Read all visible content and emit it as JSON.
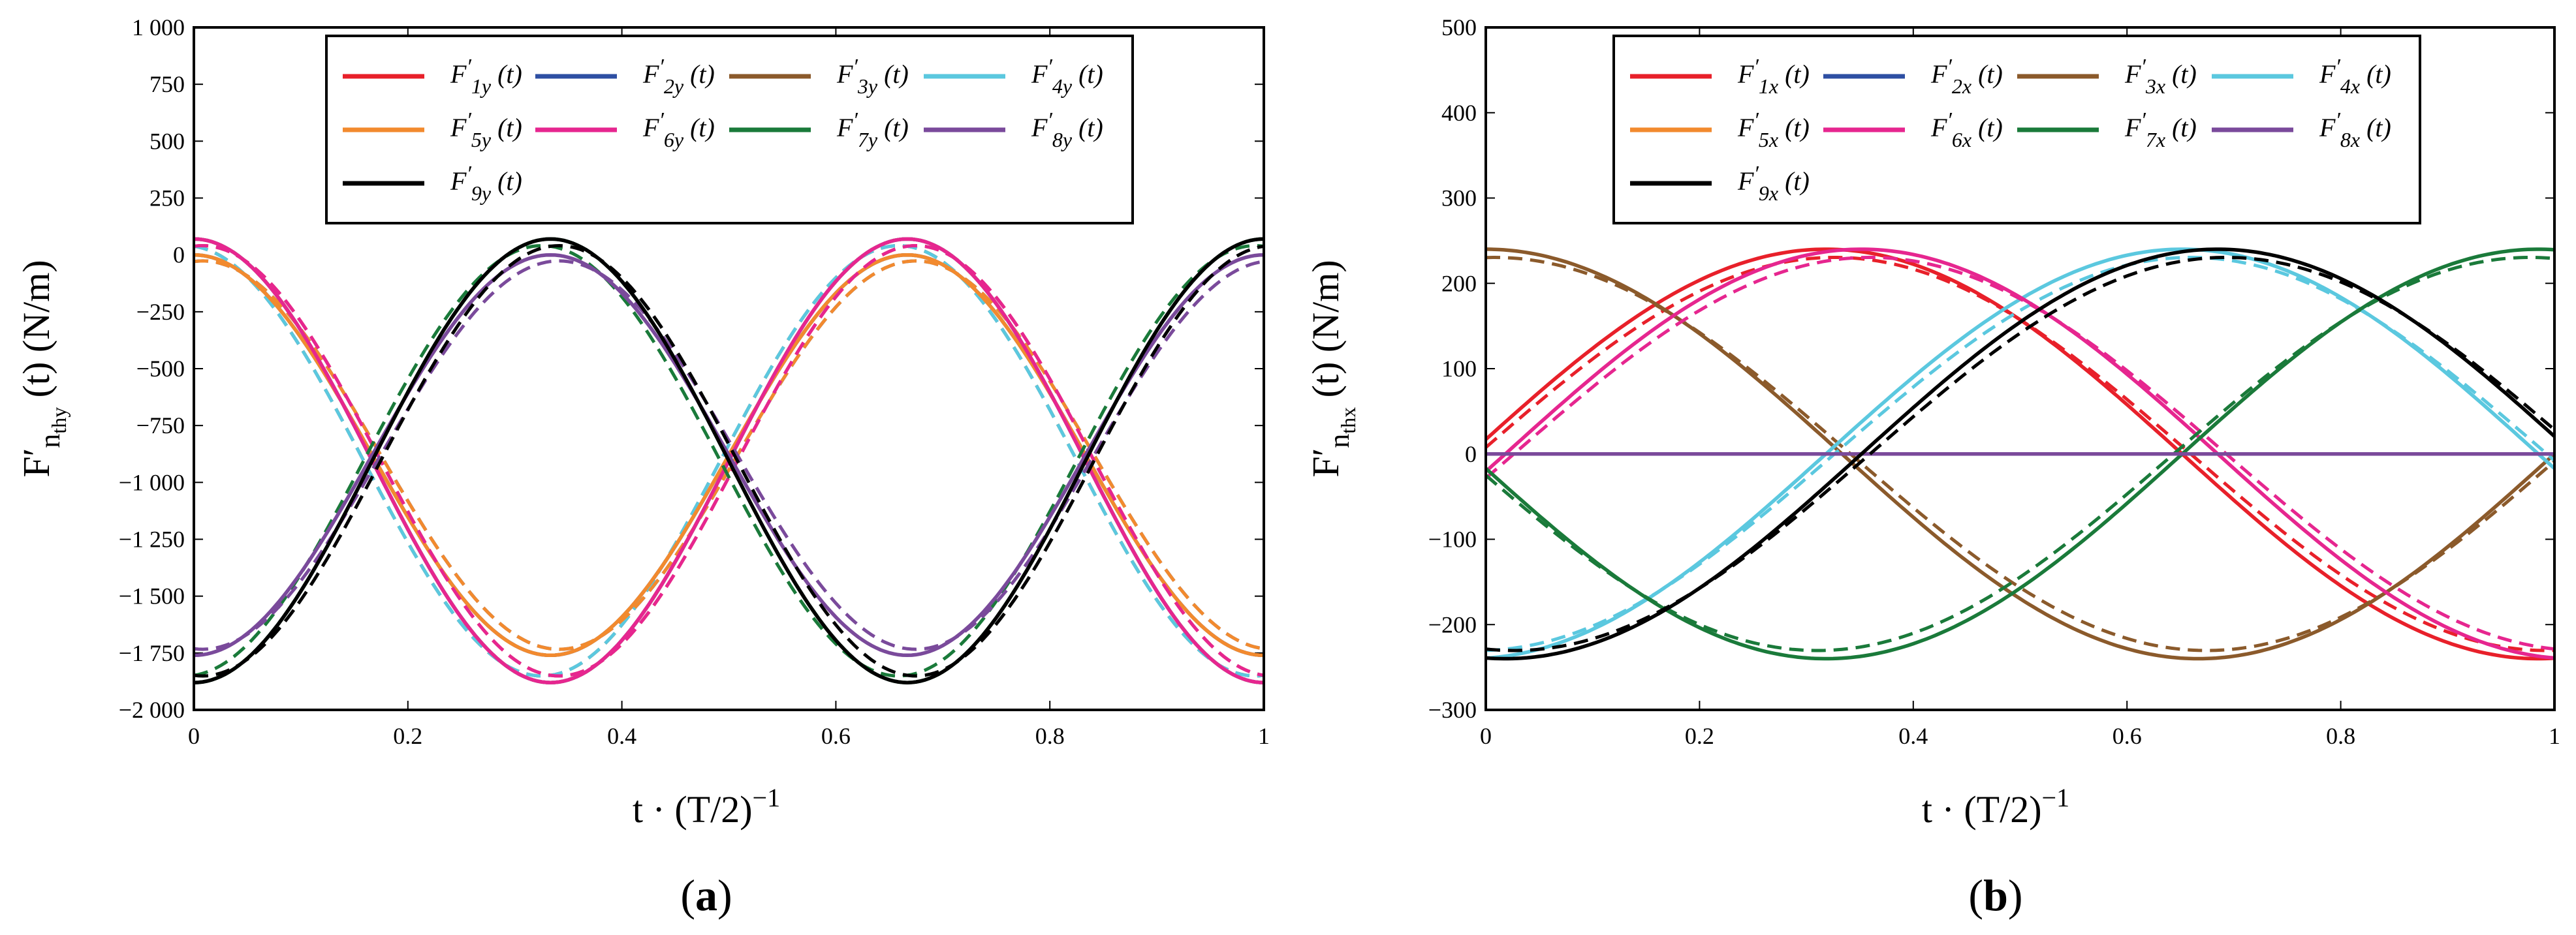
{
  "chart_data": [
    {
      "type": "line",
      "panel_label": "(a)",
      "panel_letter": "a",
      "ylabel": "F′nthy (t) (N/m)",
      "ylabel_main": "F′",
      "ylabel_sub": "n",
      "ylabel_subsub": "thy",
      "ylabel_tail": " (t) (N/m)",
      "xlabel": "t · (T/2)−1",
      "xlabel_main": "t · (T/2)",
      "xlabel_sup": "−1",
      "xlim": [
        0,
        1
      ],
      "ylim": [
        -2000,
        1000
      ],
      "x_ticks": [
        0,
        0.2,
        0.4,
        0.6,
        0.8,
        1
      ],
      "x_tick_labels": [
        "0",
        "0.2",
        "0.4",
        "0.6",
        "0.8",
        "1"
      ],
      "y_ticks": [
        1000,
        750,
        500,
        250,
        0,
        -250,
        -500,
        -750,
        -1000,
        -1250,
        -1500,
        -1750,
        -2000
      ],
      "y_tick_labels": [
        "1 000",
        "750",
        "500",
        "250",
        "0",
        "−250",
        "−500",
        "−750",
        "−1 000",
        "−1 250",
        "−1 500",
        "−1 750",
        "−2 000"
      ],
      "legend_position": "top",
      "style_note": "solid = model, dashed = reference",
      "series": [
        {
          "name": "F′1y (t)",
          "base": "F",
          "sub": "1y",
          "color": "#e8202a",
          "offset": -905,
          "amplitude": 975,
          "phase": 0.6667,
          "dashed_scale": 0.97,
          "dashed_shift": 0.008
        },
        {
          "name": "F′2y (t)",
          "base": "F",
          "sub": "2y",
          "color": "#2e4fa3",
          "offset": -880,
          "amplitude": 880,
          "phase": 0.6667,
          "dashed_scale": 0.97,
          "dashed_shift": 0.008
        },
        {
          "name": "F′3y (t)",
          "base": "F",
          "sub": "3y",
          "color": "#8b5a2b",
          "offset": -905,
          "amplitude": 975,
          "phase": 0.6667,
          "dashed_scale": 0.97,
          "dashed_shift": -0.008
        },
        {
          "name": "F′4y (t)",
          "base": "F",
          "sub": "4y",
          "color": "#5bc8df",
          "offset": -905,
          "amplitude": 975,
          "phase": 0.0,
          "dashed_scale": 0.97,
          "dashed_shift": -0.008
        },
        {
          "name": "F′5y (t)",
          "base": "F",
          "sub": "5y",
          "color": "#f28a2e",
          "offset": -880,
          "amplitude": 880,
          "phase": 0.0,
          "dashed_scale": 0.97,
          "dashed_shift": 0.008
        },
        {
          "name": "F′6y (t)",
          "base": "F",
          "sub": "6y",
          "color": "#e6268f",
          "offset": -905,
          "amplitude": 975,
          "phase": 0.0,
          "dashed_scale": 0.97,
          "dashed_shift": 0.008
        },
        {
          "name": "F′7y (t)",
          "base": "F",
          "sub": "7y",
          "color": "#1a7a3a",
          "offset": -905,
          "amplitude": 975,
          "phase": 0.3333,
          "dashed_scale": 0.97,
          "dashed_shift": -0.008
        },
        {
          "name": "F′8y (t)",
          "base": "F",
          "sub": "8y",
          "color": "#7a4a9b",
          "offset": -880,
          "amplitude": 880,
          "phase": 0.3333,
          "dashed_scale": 0.97,
          "dashed_shift": 0.008
        },
        {
          "name": "F′9y (t)",
          "base": "F",
          "sub": "9y",
          "color": "#000000",
          "offset": -905,
          "amplitude": 975,
          "phase": 0.3333,
          "dashed_scale": 0.97,
          "dashed_shift": 0.008
        }
      ]
    },
    {
      "type": "line",
      "panel_label": "(b)",
      "panel_letter": "b",
      "ylabel": "F′nthx (t) (N/m)",
      "ylabel_main": "F′",
      "ylabel_sub": "n",
      "ylabel_subsub": "thx",
      "ylabel_tail": " (t) (N/m)",
      "xlabel": "t · (T/2)−1",
      "xlabel_main": "t · (T/2)",
      "xlabel_sup": "−1",
      "xlim": [
        0,
        1
      ],
      "ylim": [
        -300,
        500
      ],
      "x_ticks": [
        0,
        0.2,
        0.4,
        0.6,
        0.8,
        1
      ],
      "x_tick_labels": [
        "0",
        "0.2",
        "0.4",
        "0.6",
        "0.8",
        "1"
      ],
      "y_ticks": [
        500,
        400,
        300,
        200,
        100,
        0,
        -100,
        -200,
        -300
      ],
      "y_tick_labels": [
        "500",
        "400",
        "300",
        "200",
        "100",
        "0",
        "−100",
        "−200",
        "−300"
      ],
      "legend_position": "top",
      "style_note": "solid = model, dashed = reference",
      "series": [
        {
          "name": "F′1x (t)",
          "base": "F",
          "sub": "1x",
          "color": "#e8202a",
          "amplitude": 240,
          "phase": 0.3183,
          "dashed_scale": 0.96,
          "dashed_shift": 0.008
        },
        {
          "name": "F′2x (t)",
          "base": "F",
          "sub": "2x",
          "color": "#2e4fa3",
          "amplitude": 0,
          "phase": 0.0,
          "dashed_scale": 1.0,
          "dashed_shift": 0.0
        },
        {
          "name": "F′3x (t)",
          "base": "F",
          "sub": "3x",
          "color": "#8b5a2b",
          "amplitude": 240,
          "phase": 0.0,
          "dashed_scale": 0.96,
          "dashed_shift": 0.008
        },
        {
          "name": "F′4x (t)",
          "base": "F",
          "sub": "4x",
          "color": "#5bc8df",
          "amplitude": 240,
          "phase": 0.6516,
          "dashed_scale": 0.96,
          "dashed_shift": 0.008
        },
        {
          "name": "F′5x (t)",
          "base": "F",
          "sub": "5x",
          "color": "#f28a2e",
          "amplitude": 0,
          "phase": 0.0,
          "dashed_scale": 1.0,
          "dashed_shift": 0.0
        },
        {
          "name": "F′6x (t)",
          "base": "F",
          "sub": "6x",
          "color": "#e6268f",
          "amplitude": 240,
          "phase": 0.3516,
          "dashed_scale": 0.96,
          "dashed_shift": 0.008
        },
        {
          "name": "F′7x (t)",
          "base": "F",
          "sub": "7x",
          "color": "#1a7a3a",
          "amplitude": 240,
          "phase": 0.985,
          "dashed_scale": 0.96,
          "dashed_shift": -0.008
        },
        {
          "name": "F′8x (t)",
          "base": "F",
          "sub": "8x",
          "color": "#7a4a9b",
          "amplitude": 0,
          "phase": 0.0,
          "dashed_scale": 1.0,
          "dashed_shift": 0.0
        },
        {
          "name": "F′9x (t)",
          "base": "F",
          "sub": "9x",
          "color": "#000000",
          "amplitude": 240,
          "phase": 0.6849,
          "dashed_scale": 0.96,
          "dashed_shift": 0.008
        }
      ]
    }
  ]
}
